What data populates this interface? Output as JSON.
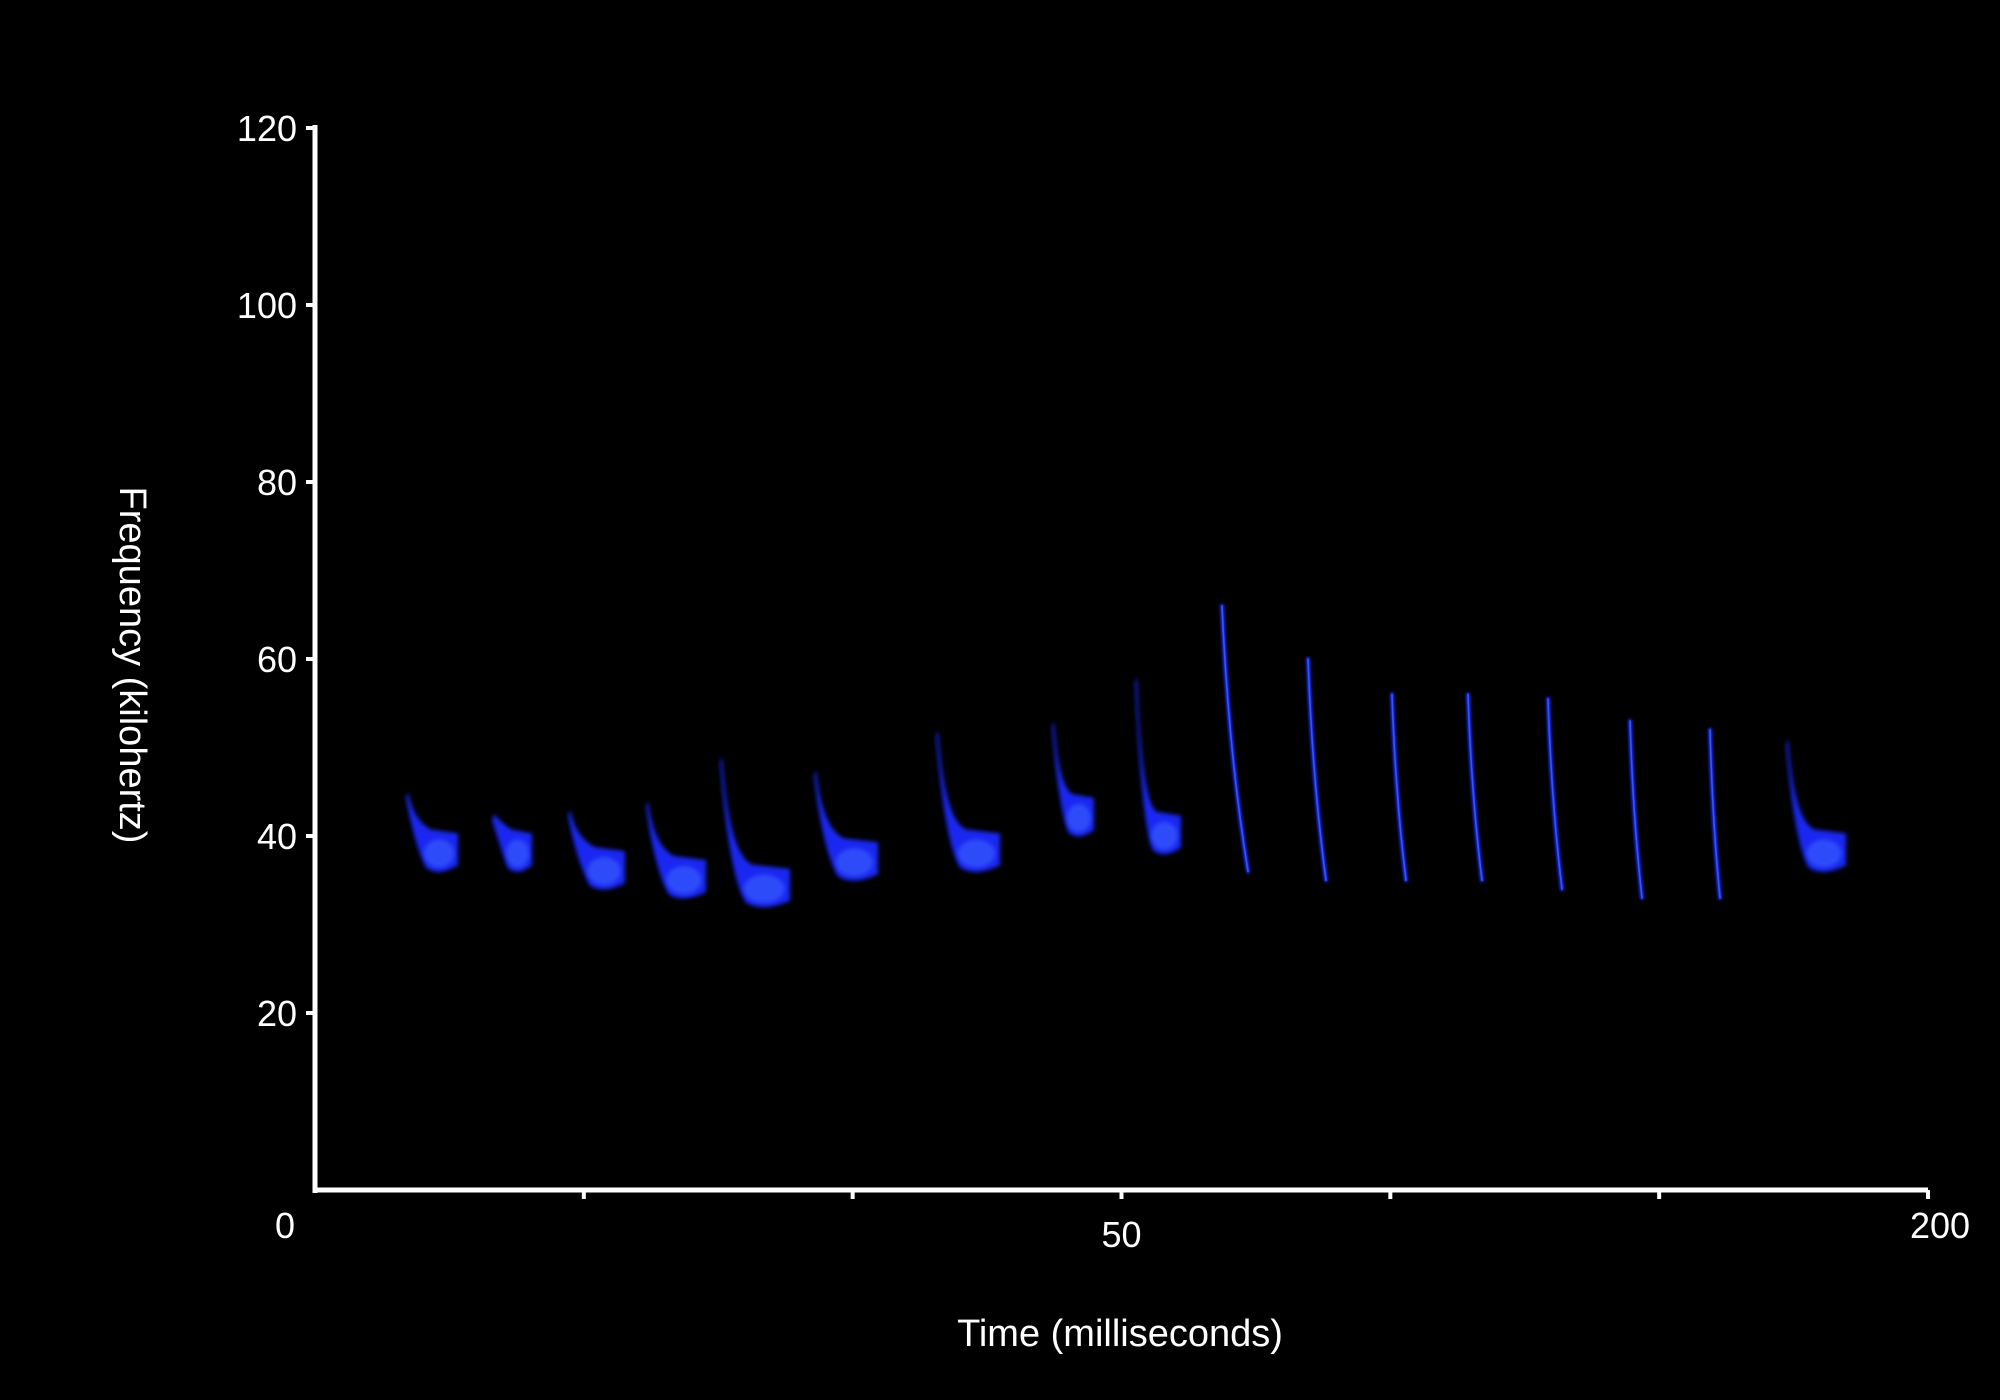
{
  "chart_data": {
    "type": "heatmap",
    "subtype": "spectrogram",
    "title": "",
    "xlabel": "Time (milliseconds)",
    "ylabel": "Frequency (kilohertz)",
    "ylim": [
      0,
      120
    ],
    "y_ticks": [
      {
        "value": 20,
        "label": "20"
      },
      {
        "value": 40,
        "label": "40"
      },
      {
        "value": 60,
        "label": "60"
      },
      {
        "value": 80,
        "label": "80"
      },
      {
        "value": 100,
        "label": "100"
      },
      {
        "value": 120,
        "label": "120"
      }
    ],
    "x_tick_labels": [
      "0",
      "50",
      "200"
    ],
    "x_tick_count": 7,
    "grid": false,
    "legend": "none",
    "colors": {
      "background": "#000000",
      "axis": "#ffffff",
      "calls": "#1a2cff",
      "calls_bright": "#3f6bff"
    },
    "calls": [
      {
        "index": 1,
        "f_start": 45,
        "f_end": 36
      },
      {
        "index": 2,
        "f_start": 42.5,
        "f_end": 36
      },
      {
        "index": 3,
        "f_start": 43,
        "f_end": 34
      },
      {
        "index": 4,
        "f_start": 44,
        "f_end": 33
      },
      {
        "index": 5,
        "f_start": 49,
        "f_end": 32
      },
      {
        "index": 6,
        "f_start": 47.5,
        "f_end": 35
      },
      {
        "index": 7,
        "f_start": 52,
        "f_end": 36
      },
      {
        "index": 8,
        "f_start": 53,
        "f_end": 40
      },
      {
        "index": 9,
        "f_start": 58,
        "f_end": 38
      },
      {
        "index": 10,
        "f_start": 66,
        "f_end": 36
      },
      {
        "index": 11,
        "f_start": 60,
        "f_end": 35
      },
      {
        "index": 12,
        "f_start": 56,
        "f_end": 35
      },
      {
        "index": 13,
        "f_start": 56,
        "f_end": 35
      },
      {
        "index": 14,
        "f_start": 55.5,
        "f_end": 34
      },
      {
        "index": 15,
        "f_start": 53,
        "f_end": 33
      },
      {
        "index": 16,
        "f_start": 52,
        "f_end": 33
      },
      {
        "index": 17,
        "f_start": 51,
        "f_end": 36
      }
    ]
  }
}
